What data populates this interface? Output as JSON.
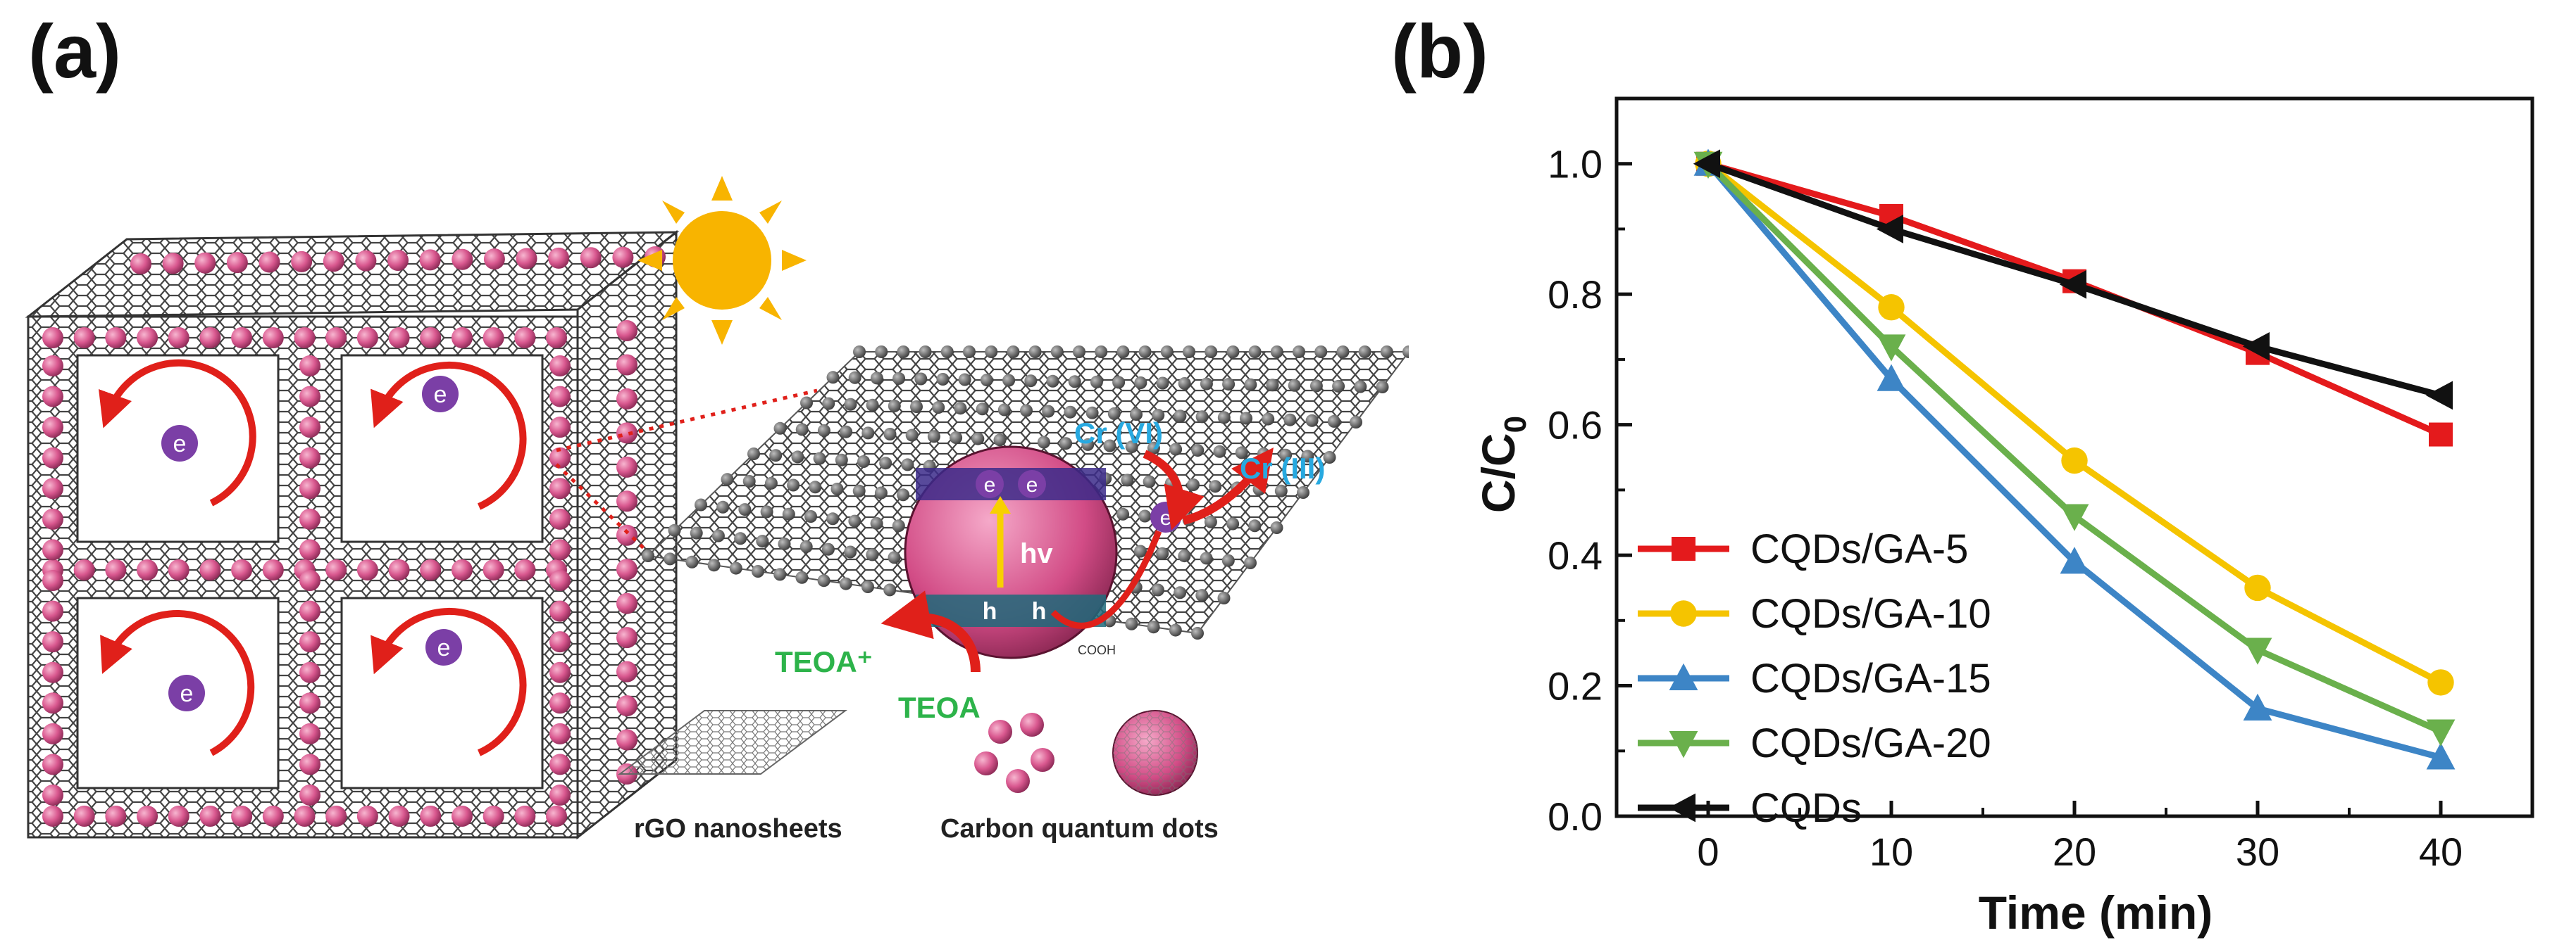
{
  "panel_a": {
    "label": "(a)",
    "annotations": {
      "cr6": "Cr (VI)",
      "cr3": "Cr (III)",
      "teoa_plus": "TEOA⁺",
      "teoa": "TEOA",
      "hv": "hv",
      "electron": "e",
      "hole": "h",
      "cooh": "COOH"
    },
    "legend": {
      "rgo": "rGO nanosheets",
      "cqd": "Carbon quantum dots"
    },
    "colors": {
      "cqd_pink": "#d9588f",
      "electron_purple": "#7b3fa6",
      "arrow_red": "#e0201a",
      "sun_yellow": "#f8b400",
      "text_blue": "#27a9e0",
      "text_green": "#2db34a",
      "graphene_gray": "#555555"
    }
  },
  "panel_b": {
    "label": "(b)"
  },
  "chart_data": {
    "type": "line",
    "xlabel": "Time (min)",
    "ylabel": "C/C0",
    "ylabel_main": "C/C",
    "ylabel_sub": "0",
    "xlim": [
      -5,
      45
    ],
    "ylim": [
      0.0,
      1.1
    ],
    "xticks": [
      0,
      10,
      20,
      30,
      40
    ],
    "yticks": [
      0.0,
      0.2,
      0.4,
      0.6,
      0.8,
      1.0
    ],
    "xtick_labels": [
      "0",
      "10",
      "20",
      "30",
      "40"
    ],
    "ytick_labels": [
      "0.0",
      "0.2",
      "0.4",
      "0.6",
      "0.8",
      "1.0"
    ],
    "legend_position": "bottom-left",
    "x": [
      0,
      10,
      20,
      30,
      40
    ],
    "series": [
      {
        "name": "CQDs/GA-5",
        "color": "#e41a1c",
        "marker": "square",
        "values": [
          1.0,
          0.92,
          0.82,
          0.71,
          0.585
        ]
      },
      {
        "name": "CQDs/GA-10",
        "color": "#f5c400",
        "marker": "circle",
        "values": [
          1.0,
          0.78,
          0.545,
          0.35,
          0.205
        ]
      },
      {
        "name": "CQDs/GA-15",
        "color": "#3d85c6",
        "marker": "triangle-up",
        "values": [
          1.0,
          0.67,
          0.39,
          0.165,
          0.09
        ]
      },
      {
        "name": "CQDs/GA-20",
        "color": "#6ab04c",
        "marker": "triangle-down",
        "values": [
          1.0,
          0.72,
          0.46,
          0.255,
          0.13
        ]
      },
      {
        "name": "CQDs",
        "color": "#111111",
        "marker": "triangle-left",
        "values": [
          1.0,
          0.9,
          0.815,
          0.72,
          0.645
        ]
      }
    ]
  }
}
